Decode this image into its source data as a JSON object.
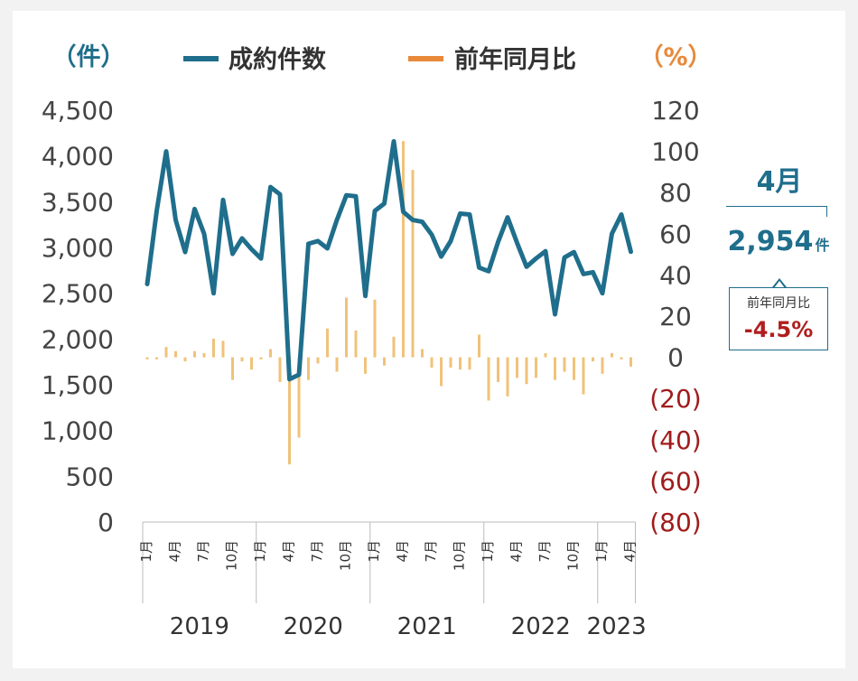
{
  "chart_data": {
    "type": "bar+line",
    "left_axis_unit": "（件）",
    "right_axis_unit": "（%）",
    "legend": [
      {
        "name": "成約件数",
        "color": "#1f6e8c"
      },
      {
        "name": "前年同月比",
        "color": "#e8893a"
      }
    ],
    "left_ticks": [
      "4,500",
      "4,000",
      "3,500",
      "3,000",
      "2,500",
      "2,000",
      "1,500",
      "1,000",
      "500",
      "0"
    ],
    "right_ticks": [
      "120",
      "100",
      "80",
      "60",
      "40",
      "20",
      "0",
      "(20)",
      "(40)",
      "(60)",
      "(80)"
    ],
    "ylim_left": [
      0,
      4500
    ],
    "ylim_right": [
      -80,
      120
    ],
    "year_labels": [
      "2019",
      "2020",
      "2021",
      "2022",
      "2023"
    ],
    "month_ticks": [
      "1月",
      "4月",
      "7月",
      "10月"
    ],
    "month_ticks_2023": [
      "1月",
      "4月"
    ],
    "series": [
      {
        "name": "成約件数",
        "axis": "left",
        "values": [
          2600,
          3400,
          4050,
          3300,
          2950,
          3420,
          3150,
          2500,
          3520,
          2930,
          3100,
          2980,
          2880,
          3660,
          3580,
          1560,
          1610,
          3040,
          3070,
          2990,
          3300,
          3570,
          3560,
          2470,
          3400,
          3480,
          4160,
          3390,
          3300,
          3280,
          3140,
          2900,
          3070,
          3370,
          3360,
          2780,
          2740,
          3060,
          3330,
          3050,
          2790,
          2880,
          2960,
          2270,
          2890,
          2950,
          2710,
          2730,
          2500,
          3150,
          3360,
          2954
        ]
      },
      {
        "name": "前年同月比",
        "axis": "right",
        "values": [
          -1,
          -1,
          5,
          3,
          -2,
          3,
          2,
          9,
          8,
          -11,
          -2,
          -6,
          -1,
          4,
          -12,
          -52,
          -39,
          -11,
          -3,
          14,
          -7,
          29,
          13,
          -8,
          28,
          -4,
          10,
          105,
          91,
          4,
          -5,
          -14,
          -5,
          -6,
          -6,
          11,
          -21,
          -12,
          -19,
          -10,
          -13,
          -10,
          2,
          -11,
          -7,
          -11,
          -18,
          -2,
          -8,
          2,
          -1,
          -4.5
        ]
      }
    ],
    "callout": {
      "month": "4月",
      "count": "2,954",
      "count_unit": "件",
      "yoy_label": "前年同月比",
      "yoy_value": "-4.5%"
    }
  }
}
